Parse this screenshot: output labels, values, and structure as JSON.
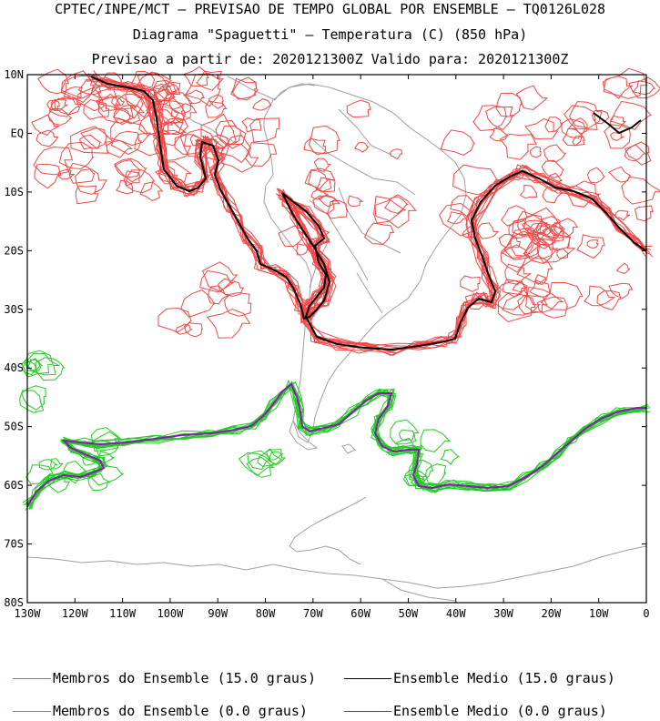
{
  "header": {
    "line1": "CPTEC/INPE/MCT — PREVISAO DE TEMPO GLOBAL POR ENSEMBLE — TQ0126L028",
    "line2": "Diagrama \"Spaguetti\" — Temperatura (C) (850 hPa)",
    "line3": "Previsao a partir de: 2020121300Z  Valido para: 2020121300Z"
  },
  "map": {
    "lat_labels": [
      "10N",
      "EQ",
      "10S",
      "20S",
      "30S",
      "40S",
      "50S",
      "60S",
      "70S",
      "80S"
    ],
    "lon_labels": [
      "130W",
      "120W",
      "110W",
      "100W",
      "90W",
      "80W",
      "70W",
      "60W",
      "50W",
      "40W",
      "30W",
      "20W",
      "10W",
      "0"
    ],
    "lon_range": [
      -130,
      0
    ],
    "lat_range": [
      -80,
      10
    ]
  },
  "legend": {
    "members_15": {
      "label": "Membros do Ensemble (15.0 graus)",
      "color": "#f04848"
    },
    "mean_15": {
      "label": "Ensemble Medio (15.0 graus)",
      "color": "#000000"
    },
    "members_0": {
      "label": "Membros do Ensemble (0.0 graus)",
      "color": "#22cc22"
    },
    "mean_0": {
      "label": "Ensemble Medio (0.0 graus)",
      "color": "#8a1ab0"
    }
  },
  "colors": {
    "coast": "#a0a0a0",
    "frame": "#000000"
  }
}
